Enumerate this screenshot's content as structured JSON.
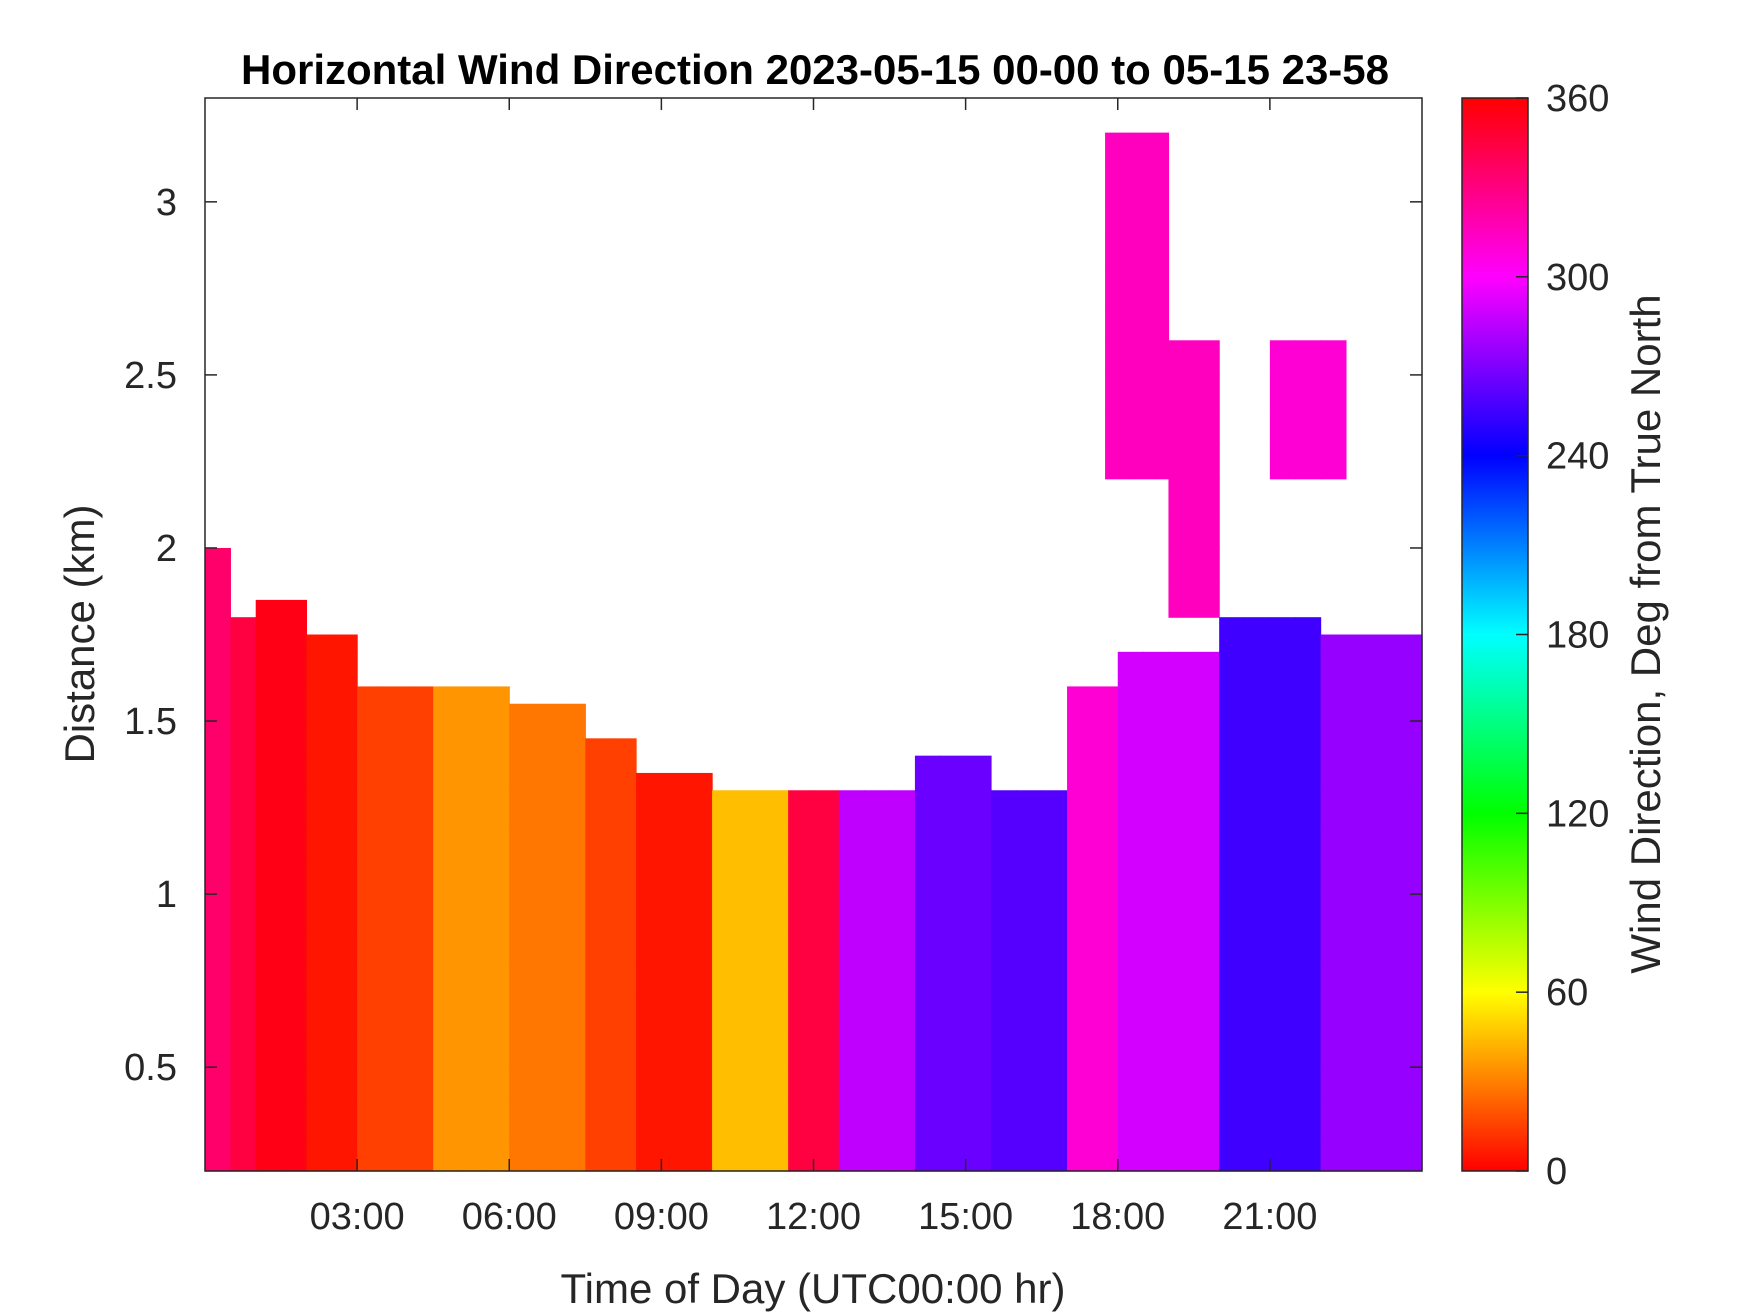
{
  "chart_data": {
    "type": "heatmap",
    "title": "Horizontal Wind Direction 2023-05-15 00-00 to 05-15 23-58",
    "xlabel": "Time of Day (UTC00:00 hr)",
    "ylabel": "Distance (km)",
    "colorbar_label": "Wind Direction, Deg from True North",
    "x_unit": "hours",
    "xlim": [
      0,
      24
    ],
    "ylim": [
      0.2,
      3.3
    ],
    "x_ticks": [
      {
        "value": 3,
        "label": "03:00"
      },
      {
        "value": 6,
        "label": "06:00"
      },
      {
        "value": 9,
        "label": "09:00"
      },
      {
        "value": 12,
        "label": "12:00"
      },
      {
        "value": 15,
        "label": "15:00"
      },
      {
        "value": 18,
        "label": "18:00"
      },
      {
        "value": 21,
        "label": "21:00"
      }
    ],
    "y_ticks": [
      {
        "value": 0.5,
        "label": "0.5"
      },
      {
        "value": 1,
        "label": "1"
      },
      {
        "value": 1.5,
        "label": "1.5"
      },
      {
        "value": 2,
        "label": "2"
      },
      {
        "value": 2.5,
        "label": "2.5"
      },
      {
        "value": 3,
        "label": "3"
      }
    ],
    "colorbar": {
      "range": [
        0,
        360
      ],
      "ticks": [
        {
          "value": 0,
          "label": "0"
        },
        {
          "value": 60,
          "label": "60"
        },
        {
          "value": 120,
          "label": "120"
        },
        {
          "value": 180,
          "label": "180"
        },
        {
          "value": 240,
          "label": "240"
        },
        {
          "value": 300,
          "label": "300"
        },
        {
          "value": 360,
          "label": "360"
        }
      ],
      "colormap": "hsv"
    },
    "cell_size": {
      "hours": 0.5,
      "km": 0.1
    },
    "regions": [
      {
        "t_start": 0.0,
        "t_end": 0.5,
        "top_km": 2.0,
        "dir_deg": 335
      },
      {
        "t_start": 0.5,
        "t_end": 1.0,
        "top_km": 1.8,
        "dir_deg": 345
      },
      {
        "t_start": 1.0,
        "t_end": 2.0,
        "top_km": 1.85,
        "dir_deg": 355
      },
      {
        "t_start": 2.0,
        "t_end": 3.0,
        "top_km": 1.75,
        "dir_deg": 5
      },
      {
        "t_start": 3.0,
        "t_end": 4.5,
        "top_km": 1.6,
        "dir_deg": 15
      },
      {
        "t_start": 4.5,
        "t_end": 6.0,
        "top_km": 1.6,
        "dir_deg": 35
      },
      {
        "t_start": 6.0,
        "t_end": 7.5,
        "top_km": 1.55,
        "dir_deg": 28
      },
      {
        "t_start": 7.5,
        "t_end": 8.5,
        "top_km": 1.45,
        "dir_deg": 15
      },
      {
        "t_start": 8.5,
        "t_end": 10.0,
        "top_km": 1.35,
        "dir_deg": 5
      },
      {
        "t_start": 10.0,
        "t_end": 11.5,
        "top_km": 1.3,
        "dir_deg": 45
      },
      {
        "t_start": 11.5,
        "t_end": 12.5,
        "top_km": 1.3,
        "dir_deg": 345
      },
      {
        "t_start": 12.5,
        "t_end": 14.0,
        "top_km": 1.3,
        "dir_deg": 285
      },
      {
        "t_start": 14.0,
        "t_end": 15.5,
        "top_km": 1.4,
        "dir_deg": 265
      },
      {
        "t_start": 15.5,
        "t_end": 17.0,
        "top_km": 1.3,
        "dir_deg": 260
      },
      {
        "t_start": 17.0,
        "t_end": 18.0,
        "top_km": 1.6,
        "dir_deg": 310
      },
      {
        "t_start": 18.0,
        "t_end": 20.0,
        "top_km": 1.7,
        "dir_deg": 290
      },
      {
        "t_start": 20.0,
        "t_end": 22.0,
        "top_km": 1.8,
        "dir_deg": 255
      },
      {
        "t_start": 22.0,
        "t_end": 24.0,
        "top_km": 1.75,
        "dir_deg": 275
      }
    ],
    "upper_layer": [
      {
        "t_start": 17.75,
        "t_end": 19.0,
        "bottom_km": 2.2,
        "top_km": 3.2,
        "dir_deg": 315
      },
      {
        "t_start": 19.0,
        "t_end": 20.0,
        "bottom_km": 1.8,
        "top_km": 2.6,
        "dir_deg": 315
      },
      {
        "t_start": 21.0,
        "t_end": 22.5,
        "bottom_km": 2.2,
        "top_km": 2.6,
        "dir_deg": 310
      }
    ]
  }
}
